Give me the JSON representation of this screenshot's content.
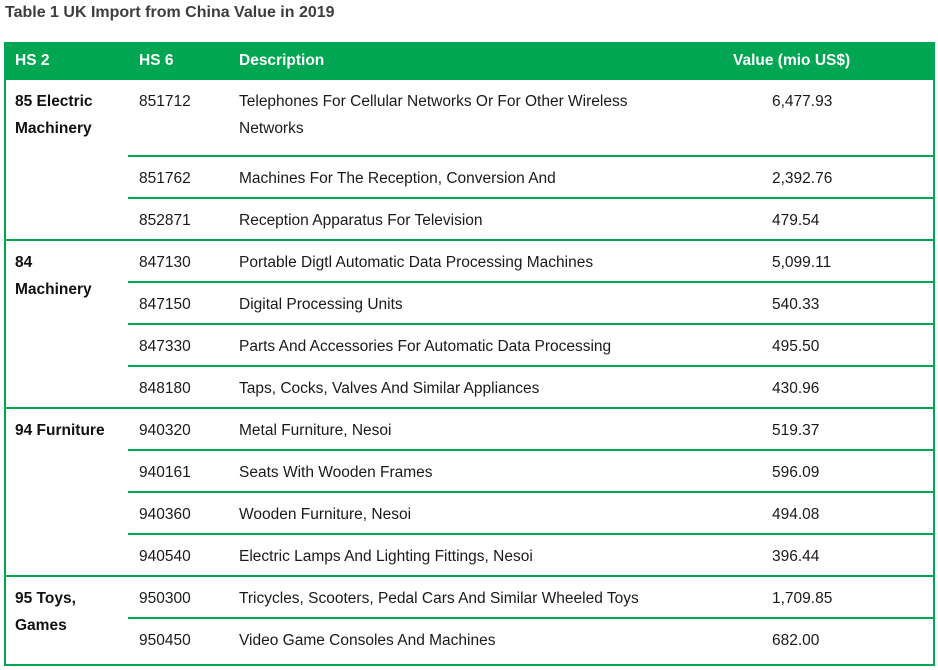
{
  "title": "Table 1 UK Import from China Value in 2019",
  "colors": {
    "header_green": "#00A651",
    "line_green": "#00A651",
    "title_gray": "#3D3D3D",
    "body_text": "#1A1A1A"
  },
  "table": {
    "columns": [
      "HS 2",
      "HS 6",
      "Description",
      "Value (mio US$)"
    ],
    "groups": [
      {
        "hs2": "85 Electric\nMachinery",
        "rows": [
          {
            "hs6": "851712",
            "description": "Telephones For Cellular Networks Or For Other Wireless\nNetworks",
            "value": "6,477.93"
          },
          {
            "hs6": "851762",
            "description": "Machines For The Reception, Conversion And",
            "value": "2,392.76"
          },
          {
            "hs6": "852871",
            "description": "Reception Apparatus For Television",
            "value": "479.54"
          }
        ]
      },
      {
        "hs2": "84\nMachinery",
        "rows": [
          {
            "hs6": "847130",
            "description": "Portable Digtl Automatic Data Processing Machines",
            "value": "5,099.11"
          },
          {
            "hs6": "847150",
            "description": "Digital Processing Units",
            "value": "540.33"
          },
          {
            "hs6": "847330",
            "description": "Parts And Accessories For Automatic Data Processing",
            "value": "495.50"
          },
          {
            "hs6": "848180",
            "description": "Taps, Cocks, Valves And Similar Appliances",
            "value": "430.96"
          }
        ]
      },
      {
        "hs2": "94 Furniture",
        "rows": [
          {
            "hs6": "940320",
            "description": "Metal Furniture, Nesoi",
            "value": "519.37"
          },
          {
            "hs6": "940161",
            "description": "Seats With Wooden Frames",
            "value": "596.09"
          },
          {
            "hs6": "940360",
            "description": "Wooden Furniture, Nesoi",
            "value": "494.08"
          },
          {
            "hs6": "940540",
            "description": "Electric Lamps And Lighting Fittings, Nesoi",
            "value": "396.44"
          }
        ]
      },
      {
        "hs2": "95 Toys,\nGames",
        "rows": [
          {
            "hs6": "950300",
            "description": "Tricycles, Scooters, Pedal Cars And Similar Wheeled Toys",
            "value": "1,709.85"
          },
          {
            "hs6": "950450",
            "description": "Video Game Consoles And Machines",
            "value": "682.00"
          }
        ]
      }
    ]
  }
}
